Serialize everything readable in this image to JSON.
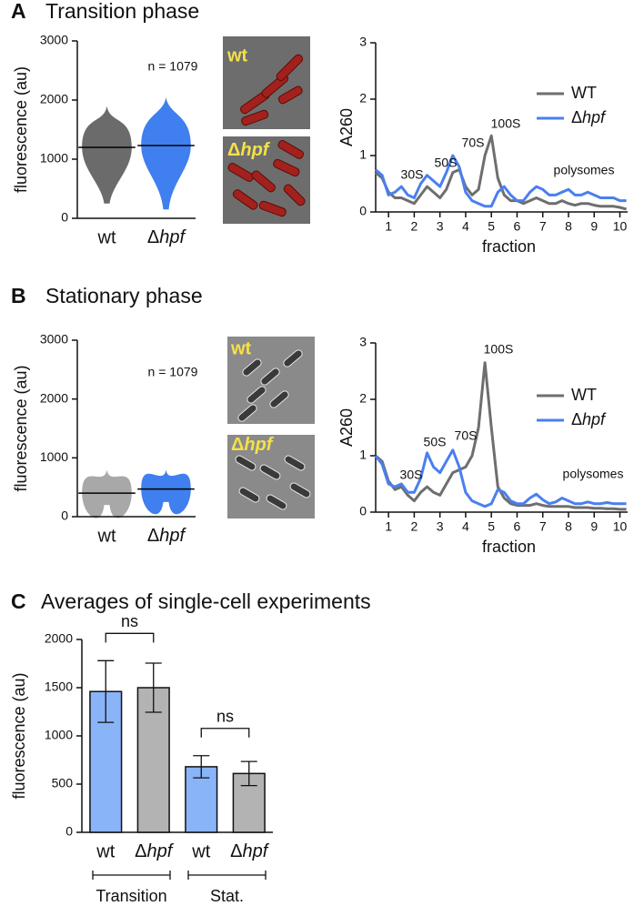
{
  "panels": [
    {
      "label": "A",
      "title": "Transition phase",
      "images": [
        "wt",
        "Δhpf"
      ]
    },
    {
      "label": "B",
      "title": "Stationary phase",
      "images": [
        "wt",
        "Δhpf"
      ]
    },
    {
      "label": "C",
      "title": "Averages of  single-cell experiments"
    }
  ],
  "chart_data": [
    {
      "type": "swarm",
      "y_label": "fluorescence (au)",
      "annotation": "n = 1079",
      "categories": [
        "wt",
        "Δhpf"
      ],
      "medians": [
        1200,
        1230
      ],
      "ranges": [
        [
          250,
          1900
        ],
        [
          150,
          2050
        ]
      ],
      "colors": [
        "#6b6b6b",
        "#3f7ff0"
      ],
      "ylim": [
        0,
        3000
      ],
      "yticks": [
        0,
        1000,
        2000,
        3000
      ]
    },
    {
      "type": "line",
      "y_label": "A260",
      "x_label": "fraction",
      "x": [
        0.5,
        0.75,
        1,
        1.25,
        1.5,
        1.75,
        2,
        2.25,
        2.5,
        2.75,
        3,
        3.25,
        3.5,
        3.75,
        4,
        4.25,
        4.5,
        4.75,
        5,
        5.25,
        5.5,
        5.75,
        6,
        6.25,
        6.5,
        6.75,
        7,
        7.25,
        7.5,
        7.75,
        8,
        8.25,
        8.5,
        8.75,
        9,
        9.25,
        9.5,
        9.75,
        10,
        10.25
      ],
      "series": [
        {
          "name": "WT",
          "color": "#6e6e6e",
          "values": [
            0.7,
            0.6,
            0.35,
            0.25,
            0.25,
            0.2,
            0.15,
            0.3,
            0.45,
            0.35,
            0.25,
            0.4,
            0.7,
            0.75,
            0.45,
            0.3,
            0.4,
            1.0,
            1.35,
            0.6,
            0.3,
            0.2,
            0.2,
            0.15,
            0.2,
            0.25,
            0.2,
            0.15,
            0.15,
            0.2,
            0.15,
            0.12,
            0.15,
            0.15,
            0.12,
            0.1,
            0.1,
            0.1,
            0.08,
            0.05
          ]
        },
        {
          "name": "Δhpf",
          "color": "#4a7ff0",
          "values": [
            0.75,
            0.65,
            0.3,
            0.35,
            0.45,
            0.3,
            0.25,
            0.5,
            0.65,
            0.55,
            0.45,
            0.7,
            1.0,
            0.8,
            0.35,
            0.2,
            0.15,
            0.1,
            0.1,
            0.35,
            0.45,
            0.3,
            0.2,
            0.2,
            0.35,
            0.45,
            0.4,
            0.3,
            0.3,
            0.35,
            0.4,
            0.3,
            0.3,
            0.35,
            0.3,
            0.25,
            0.25,
            0.25,
            0.2,
            0.2
          ]
        }
      ],
      "annotations": [
        "30S",
        "50S",
        "70S",
        "100S",
        "polysomes"
      ],
      "xlim": [
        0.5,
        10.3
      ],
      "xticks": [
        1,
        2,
        3,
        4,
        5,
        6,
        7,
        8,
        9,
        10
      ],
      "ylim": [
        0,
        3
      ],
      "yticks": [
        0,
        1,
        2,
        3
      ]
    },
    {
      "type": "swarm",
      "y_label": "fluorescence (au)",
      "annotation": "n = 1079",
      "categories": [
        "wt",
        "Δhpf"
      ],
      "medians": [
        400,
        470
      ],
      "ranges": [
        [
          200,
          800
        ],
        [
          250,
          800
        ]
      ],
      "colors": [
        "#a8a8a8",
        "#3f7ff0"
      ],
      "ylim": [
        0,
        3000
      ],
      "yticks": [
        0,
        1000,
        2000,
        3000
      ]
    },
    {
      "type": "line",
      "y_label": "A260",
      "x_label": "fraction",
      "x": [
        0.5,
        0.75,
        1,
        1.25,
        1.5,
        1.75,
        2,
        2.25,
        2.5,
        2.75,
        3,
        3.25,
        3.5,
        3.75,
        4,
        4.25,
        4.5,
        4.75,
        5,
        5.25,
        5.5,
        5.75,
        6,
        6.25,
        6.5,
        6.75,
        7,
        7.25,
        7.5,
        7.75,
        8,
        8.25,
        8.5,
        8.75,
        9,
        9.25,
        9.5,
        9.75,
        10,
        10.25
      ],
      "series": [
        {
          "name": "WT",
          "color": "#6e6e6e",
          "values": [
            1.0,
            0.9,
            0.55,
            0.4,
            0.45,
            0.3,
            0.2,
            0.35,
            0.45,
            0.35,
            0.3,
            0.5,
            0.7,
            0.75,
            0.8,
            1.0,
            1.5,
            2.65,
            1.5,
            0.45,
            0.25,
            0.15,
            0.12,
            0.12,
            0.12,
            0.15,
            0.12,
            0.1,
            0.1,
            0.1,
            0.1,
            0.08,
            0.08,
            0.08,
            0.07,
            0.07,
            0.06,
            0.06,
            0.05,
            0.05
          ]
        },
        {
          "name": "Δhpf",
          "color": "#4a7ff0",
          "values": [
            1.0,
            0.85,
            0.5,
            0.45,
            0.5,
            0.35,
            0.35,
            0.6,
            1.05,
            0.8,
            0.7,
            0.9,
            1.1,
            0.8,
            0.35,
            0.2,
            0.15,
            0.1,
            0.15,
            0.4,
            0.35,
            0.2,
            0.15,
            0.15,
            0.25,
            0.32,
            0.22,
            0.15,
            0.18,
            0.25,
            0.2,
            0.15,
            0.15,
            0.18,
            0.15,
            0.15,
            0.17,
            0.15,
            0.15,
            0.15
          ]
        }
      ],
      "annotations": [
        "30S",
        "50S",
        "70S",
        "100S",
        "polysomes"
      ],
      "xlim": [
        0.5,
        10.3
      ],
      "xticks": [
        1,
        2,
        3,
        4,
        5,
        6,
        7,
        8,
        9,
        10
      ],
      "ylim": [
        0,
        3
      ],
      "yticks": [
        0,
        1,
        2,
        3
      ]
    },
    {
      "type": "bar",
      "y_label": "fluorescence (au)",
      "categories": [
        "wt",
        "Δhpf",
        "wt",
        "Δhpf"
      ],
      "values": [
        1460,
        1500,
        680,
        610
      ],
      "errors": [
        320,
        255,
        115,
        125
      ],
      "colors": [
        "#8ab4f8",
        "#b3b3b3",
        "#8ab4f8",
        "#b3b3b3"
      ],
      "groups": [
        "Transition",
        "Stat."
      ],
      "comparisons": [
        {
          "label": "ns",
          "pair": [
            0,
            1
          ]
        },
        {
          "label": "ns",
          "pair": [
            2,
            3
          ]
        }
      ],
      "ylim": [
        0,
        2000
      ],
      "yticks": [
        0,
        500,
        1000,
        1500,
        2000
      ]
    }
  ]
}
